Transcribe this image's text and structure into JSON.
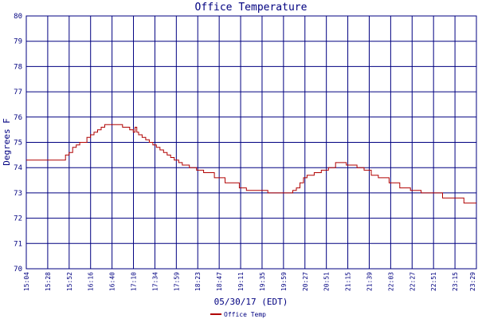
{
  "chart_data": {
    "type": "line",
    "title": "Office Temperature",
    "xlabel": "05/30/17 (EDT)",
    "ylabel": "Degrees F",
    "ylim": [
      70,
      80
    ],
    "yticks": [
      "70",
      "71",
      "72",
      "73",
      "74",
      "75",
      "76",
      "77",
      "78",
      "79",
      "80"
    ],
    "xticks": [
      "15:04",
      "15:28",
      "15:52",
      "16:16",
      "16:40",
      "17:10",
      "17:34",
      "17:59",
      "18:23",
      "18:47",
      "19:11",
      "19:35",
      "19:59",
      "20:27",
      "20:51",
      "21:15",
      "21:39",
      "22:03",
      "22:27",
      "22:51",
      "23:15",
      "23:29"
    ],
    "grid": true,
    "legend_position": "bottom-left",
    "colors": {
      "line": "#b00000",
      "grid": "#000080",
      "frame": "#000080",
      "text": "#000080"
    },
    "series": [
      {
        "name": "Office Temp",
        "x": [
          "15:04",
          "15:44",
          "15:48",
          "15:52",
          "15:56",
          "16:00",
          "16:04",
          "16:08",
          "16:12",
          "16:16",
          "16:20",
          "16:24",
          "16:28",
          "16:32",
          "16:36",
          "16:40",
          "16:44",
          "16:48",
          "16:52",
          "16:56",
          "17:00",
          "17:04",
          "17:06",
          "17:08",
          "17:10",
          "17:14",
          "17:18",
          "17:22",
          "17:26",
          "17:30",
          "17:34",
          "17:38",
          "17:42",
          "17:46",
          "17:50",
          "17:55",
          "17:59",
          "18:07",
          "18:15",
          "18:23",
          "18:35",
          "18:47",
          "19:03",
          "19:11",
          "19:23",
          "19:35",
          "19:47",
          "19:59",
          "20:03",
          "20:07",
          "20:11",
          "20:15",
          "20:19",
          "20:27",
          "20:35",
          "20:43",
          "20:51",
          "21:03",
          "21:15",
          "21:23",
          "21:31",
          "21:39",
          "21:51",
          "22:03",
          "22:15",
          "22:27",
          "22:39",
          "22:51",
          "23:03",
          "23:15",
          "23:29"
        ],
        "values": [
          74.3,
          74.3,
          74.5,
          74.6,
          74.8,
          74.9,
          75.0,
          75.0,
          75.2,
          75.3,
          75.4,
          75.5,
          75.6,
          75.7,
          75.7,
          75.7,
          75.7,
          75.7,
          75.6,
          75.6,
          75.5,
          75.4,
          75.6,
          75.4,
          75.3,
          75.2,
          75.1,
          75.0,
          74.9,
          74.8,
          74.7,
          74.6,
          74.5,
          74.4,
          74.3,
          74.2,
          74.1,
          74.0,
          73.9,
          73.8,
          73.6,
          73.4,
          73.2,
          73.1,
          73.1,
          73.0,
          73.0,
          73.0,
          73.1,
          73.2,
          73.4,
          73.6,
          73.7,
          73.8,
          73.9,
          74.0,
          74.2,
          74.1,
          74.0,
          73.9,
          73.7,
          73.6,
          73.4,
          73.2,
          73.1,
          73.0,
          73.0,
          72.8,
          72.8,
          72.6,
          72.6
        ]
      }
    ]
  }
}
